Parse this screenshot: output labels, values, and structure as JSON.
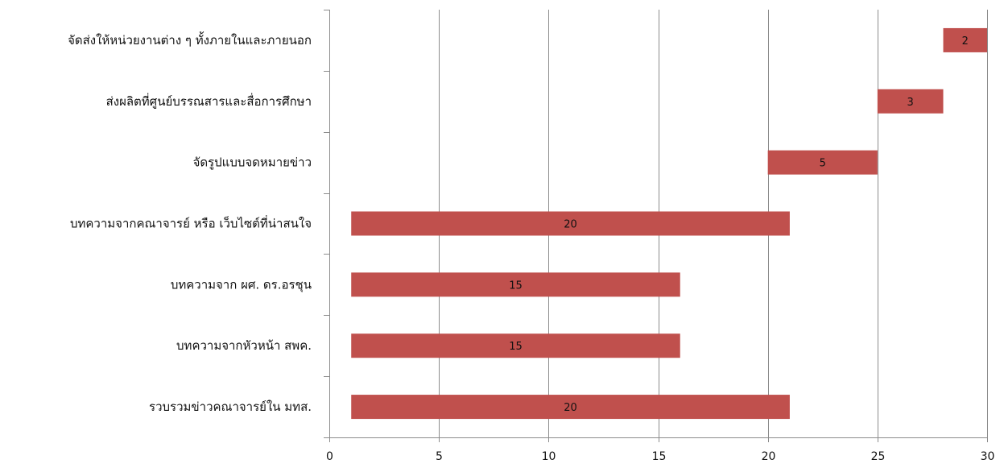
{
  "chart_data": {
    "type": "bar",
    "orientation": "horizontal",
    "style": "floating-range",
    "categories": [
      "จัดส่งให้หน่วยงานต่าง ๆ ทั้งภายในและภายนอก",
      "ส่งผลิตที่ศูนย์บรรณสารและสื่อการศึกษา",
      "จัดรูปแบบจดหมายข่าว",
      "บทความจากคณาจารย์ หรือ เว็บไซต์ที่น่าสนใจ",
      "บทความจาก ผศ. ดร.อรชุน",
      "บทความจากหัวหน้า สพค.",
      "รวบรวมข่าวคณาจารย์ใน มทส."
    ],
    "start": [
      28,
      25,
      20,
      1,
      1,
      1,
      1
    ],
    "values": [
      2,
      3,
      5,
      20,
      15,
      15,
      20
    ],
    "data_labels": [
      "2",
      "3",
      "5",
      "20",
      "15",
      "15",
      "20"
    ],
    "xlim": [
      0,
      30
    ],
    "xticks": [
      "0",
      "5",
      "10",
      "15",
      "20",
      "25",
      "30"
    ],
    "grid": true,
    "legend": "none",
    "title": "",
    "xlabel": "",
    "ylabel": "",
    "colors": {
      "bar": "#C0504D",
      "grid": "#8C8C8C",
      "axis": "#8C8C8C"
    }
  }
}
